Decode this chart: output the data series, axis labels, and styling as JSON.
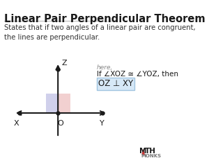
{
  "title": "Linear Pair Perpendicular Theorem",
  "subtitle": "States that if two angles of a linear pair are congruent,\nthe lines are perpendicular.",
  "bg_color": "#ffffff",
  "axis_color": "#1a1a1a",
  "here_text": "here,",
  "condition_text": "If ∠XOZ ≅ ∠YOZ, then",
  "conclusion_text": "OZ ⊥ XY",
  "conclusion_box_color": "#d6e8f7",
  "conclusion_box_edge": "#a0c4e0",
  "label_X": "X",
  "label_Y": "Y",
  "label_Z": "Z",
  "label_O": "O",
  "left_rect_color": "#c8c8e8",
  "right_rect_color": "#f0c8c8",
  "brand_monks": "MONKS",
  "title_color": "#1a1a1a",
  "subtitle_color": "#333333",
  "here_color": "#888888",
  "condition_color": "#1a1a1a",
  "brand_color": "#cc3333"
}
